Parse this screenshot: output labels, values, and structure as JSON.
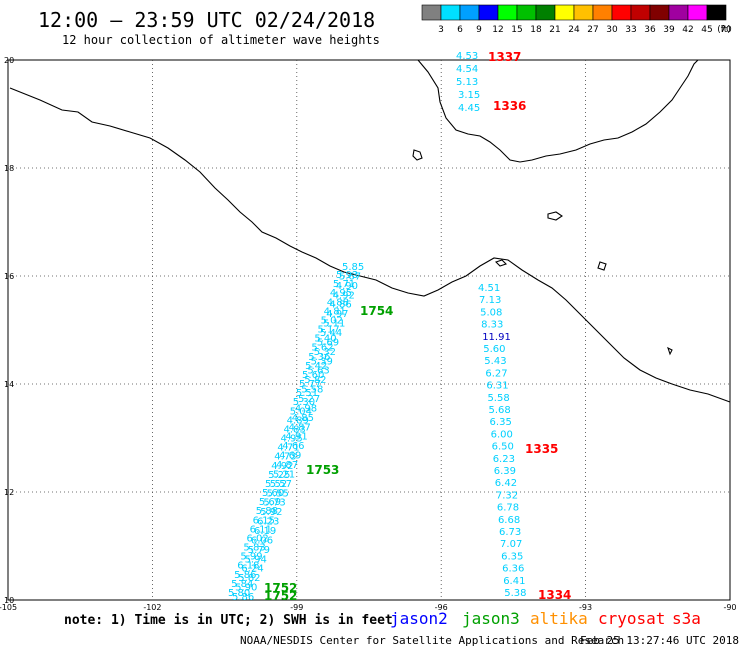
{
  "header": {
    "title": "12:00 – 23:59 UTC 02/24/2018",
    "subtitle": "12 hour collection of altimeter wave heights"
  },
  "color_scale": {
    "unit": "(ft)",
    "bins": [
      {
        "label": "3",
        "color": "#808080"
      },
      {
        "label": "6",
        "color": "#00e0ff"
      },
      {
        "label": "9",
        "color": "#00a0ff"
      },
      {
        "label": "12",
        "color": "#0000ff"
      },
      {
        "label": "15",
        "color": "#00ff00"
      },
      {
        "label": "18",
        "color": "#00c000"
      },
      {
        "label": "21",
        "color": "#008000"
      },
      {
        "label": "24",
        "color": "#ffff00"
      },
      {
        "label": "27",
        "color": "#ffc000"
      },
      {
        "label": "30",
        "color": "#ff8000"
      },
      {
        "label": "33",
        "color": "#ff0000"
      },
      {
        "label": "36",
        "color": "#c00000"
      },
      {
        "label": "39",
        "color": "#800000"
      },
      {
        "label": "42",
        "color": "#a000a0"
      },
      {
        "label": "45",
        "color": "#ff00ff"
      },
      {
        "label": "70",
        "color": "#000000"
      }
    ]
  },
  "axes": {
    "lat_labels": [
      "20",
      "18",
      "16",
      "14",
      "12",
      "10"
    ],
    "lon_labels": [
      "-105",
      "-102",
      "-99",
      "-96",
      "-93",
      "-90"
    ]
  },
  "tracks": {
    "jason3_labels": [
      "1754",
      "1753",
      "1752",
      "1752"
    ],
    "cryosat_labels": [
      "1337",
      "1336",
      "1335",
      "1334"
    ],
    "jason3_color": "#00a000",
    "cryosat_color": "#ff0000",
    "swh_color": "#00d0ff",
    "swh_dark_color": "#0000c0",
    "cryosat_north_values": [
      "4.53",
      "4.54",
      "5.13",
      "3.15",
      "4.45"
    ],
    "cryosat_south_values": [
      "4.51",
      "7.13",
      "5.08",
      "8.33",
      "11.91",
      "5.60",
      "5.43",
      "6.27",
      "6.31",
      "5.58",
      "5.68",
      "6.35",
      "6.00",
      "6.50",
      "6.23",
      "6.39",
      "6.42",
      "7.32",
      "6.78",
      "6.68",
      "6.73",
      "7.07",
      "6.35",
      "6.36",
      "6.41",
      "5.38"
    ],
    "jason3_values_a": [
      "5.85",
      "5.67",
      "4.90",
      "4.92",
      "4.86",
      "4.97",
      "5.11",
      "5.44",
      "5.69",
      "5.32",
      "5.39",
      "5.63",
      "5.82",
      "5.58",
      "5.27",
      "4.98",
      "4.85",
      "4.87",
      "4.91",
      "4.66",
      "4.69",
      "4.87",
      "5.21",
      "5.57",
      "5.55",
      "5.73",
      "5.92",
      "6.23",
      "6.19",
      "6.06",
      "5.79",
      "5.94",
      "6.24",
      "5.82",
      "5.90",
      "5.86"
    ],
    "jason3_values_b": [
      "5.93",
      "5.71",
      "4.95",
      "4.88",
      "4.81",
      "5.02",
      "5.17",
      "5.40",
      "5.62",
      "5.36",
      "5.42",
      "5.60",
      "5.77",
      "5.51",
      "5.30",
      "5.04",
      "4.89",
      "4.83",
      "4.95",
      "4.71",
      "4.73",
      "4.92",
      "5.25",
      "5.52",
      "5.60",
      "5.69",
      "5.88",
      "6.15",
      "6.11",
      "6.02",
      "5.83",
      "5.99",
      "6.18",
      "5.86",
      "5.84",
      "5.80"
    ]
  },
  "legend": {
    "note": "note: 1) Time is in UTC; 2) SWH is in feet",
    "missions": [
      {
        "name": "jason2",
        "color": "#0000ff"
      },
      {
        "name": "jason3",
        "color": "#00a000"
      },
      {
        "name": "altika",
        "color": "#ff9000"
      },
      {
        "name": "cryosat",
        "color": "#ff0000"
      },
      {
        "name": "s3a",
        "color": "#ff0000"
      }
    ]
  },
  "footer": {
    "credit": "NOAA/NESDIS Center for Satellite Applications and Research",
    "timestamp": "Feb 25 13:27:46 UTC 2018"
  }
}
